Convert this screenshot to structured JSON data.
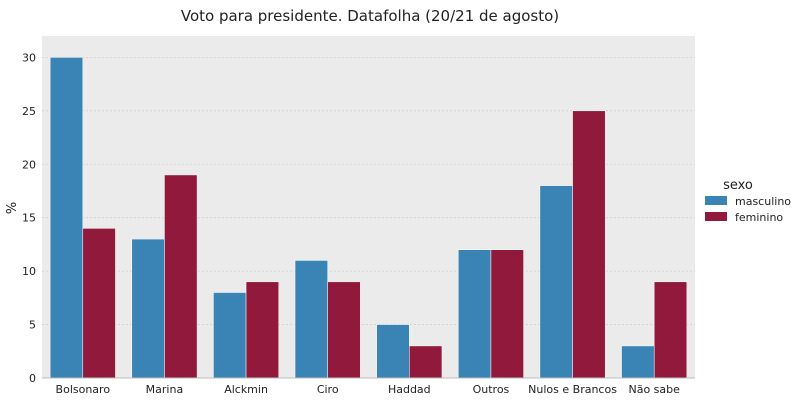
{
  "chart_data": {
    "type": "bar",
    "title": "Voto para presidente. Datafolha (20/21 de agosto)",
    "xlabel": "",
    "ylabel": "%",
    "categories": [
      "Bolsonaro",
      "Marina",
      "Alckmin",
      "Ciro",
      "Haddad",
      "Outros",
      "Nulos e Brancos",
      "Não sabe"
    ],
    "series": [
      {
        "name": "masculino",
        "color": "#3a84b5",
        "values": [
          30,
          13,
          8,
          11,
          5,
          12,
          18,
          3
        ]
      },
      {
        "name": "feminino",
        "color": "#911a3c",
        "values": [
          14,
          19,
          9,
          9,
          3,
          12,
          25,
          9
        ]
      }
    ],
    "ylim": [
      0,
      32
    ],
    "yticks": [
      0,
      5,
      10,
      15,
      20,
      25,
      30
    ],
    "grid": true,
    "legend": {
      "title": "sexo",
      "placement": "right"
    }
  },
  "colors": {
    "plot_background": "#ebebeb",
    "grid": "#cfcfcf"
  }
}
